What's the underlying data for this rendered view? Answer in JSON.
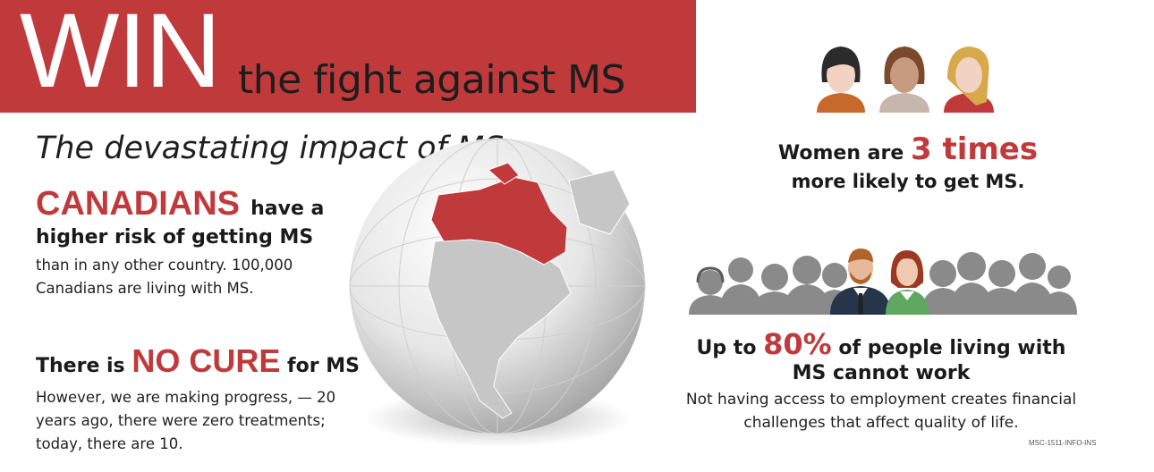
{
  "header": {
    "win": "WIN",
    "tagline": "the fight against MS"
  },
  "subtitle": "The devastating impact of MS",
  "canadians": {
    "highlight": "CANADIANS",
    "after_highlight": "have a",
    "line2": "higher risk of getting MS",
    "body": "than in any other country. 100,000 Canadians are living with MS."
  },
  "no_cure": {
    "before": "There is",
    "highlight": "NO CURE",
    "after": "for MS",
    "body": "However, we are making progress, — 20 years ago, there were zero treatments; today, there are 10."
  },
  "women": {
    "before": "Women are",
    "highlight": "3 times",
    "line2": "more likely to get MS."
  },
  "work": {
    "before": "Up to",
    "highlight": "80%",
    "after": "of people living with",
    "line2": "MS cannot work",
    "body": "Not having access to employment creates financial challenges that affect quality of life."
  },
  "footer_code": "MSC-1511-INFO-INS",
  "colors": {
    "accent": "#c0393b",
    "text": "#1a1a1a",
    "silhouette": "#8a8a8a"
  },
  "icons": {
    "globe": "globe-canada-icon",
    "women": "women-faces-icon",
    "crowd": "people-crowd-icon"
  }
}
